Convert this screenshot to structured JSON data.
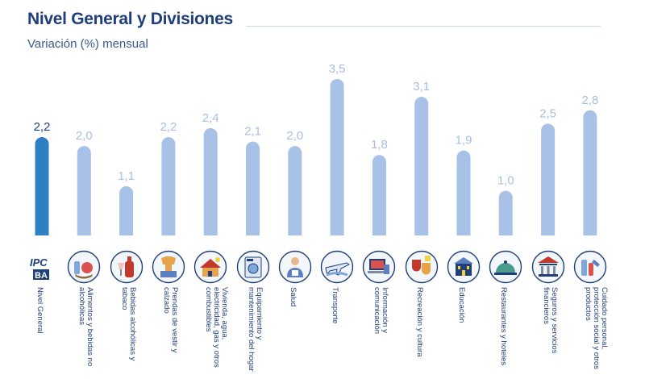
{
  "header": {
    "title": "Nivel General y Divisiones",
    "subtitle": "Variación (%) mensual"
  },
  "colors": {
    "highlight": "#2f7fc4",
    "bar": "#a8c1e6",
    "label_highlight": "#1f3f7a",
    "label": "#a8bedf",
    "text": "#1f3f7a"
  },
  "chart_data": {
    "type": "bar",
    "title": "Nivel General y Divisiones",
    "subtitle": "Variación (%) mensual",
    "xlabel": "",
    "ylabel": "",
    "ylim": [
      0,
      3.5
    ],
    "grid": false,
    "categories": [
      "Nivel General",
      "Alimentos y bebidas no alcohólicas",
      "Bebidas alcohólicas y tabaco",
      "Prendas de vestir y calzado",
      "Vivienda, agua, electricidad, gas y otros combustibles",
      "Equipamiento y mantenimiento del hogar",
      "Salud",
      "Transporte",
      "Información y comunicación",
      "Recreación y cultura",
      "Educación",
      "Restaurantes y hoteles",
      "Seguros y servicios financieros",
      "Cuidado personal, protección social y otros productos"
    ],
    "values": [
      2.2,
      2.0,
      1.1,
      2.2,
      2.4,
      2.1,
      2.0,
      3.5,
      1.8,
      3.1,
      1.9,
      1.0,
      2.5,
      2.8
    ],
    "value_labels": [
      "2,2",
      "2,0",
      "1,1",
      "2,2",
      "2,4",
      "2,1",
      "2,0",
      "3,5",
      "1,8",
      "3,1",
      "1,9",
      "1,0",
      "2,5",
      "2,8"
    ],
    "highlight_index": 0
  },
  "icons": [
    "ipc-ba-logo-icon",
    "food-basket-icon",
    "wine-bottle-icon",
    "clothing-icon",
    "house-utilities-icon",
    "washing-machine-icon",
    "doctor-icon",
    "airplane-icon",
    "computer-icon",
    "theater-masks-icon",
    "school-building-icon",
    "serving-cloche-icon",
    "bank-icon",
    "personal-care-icon"
  ]
}
